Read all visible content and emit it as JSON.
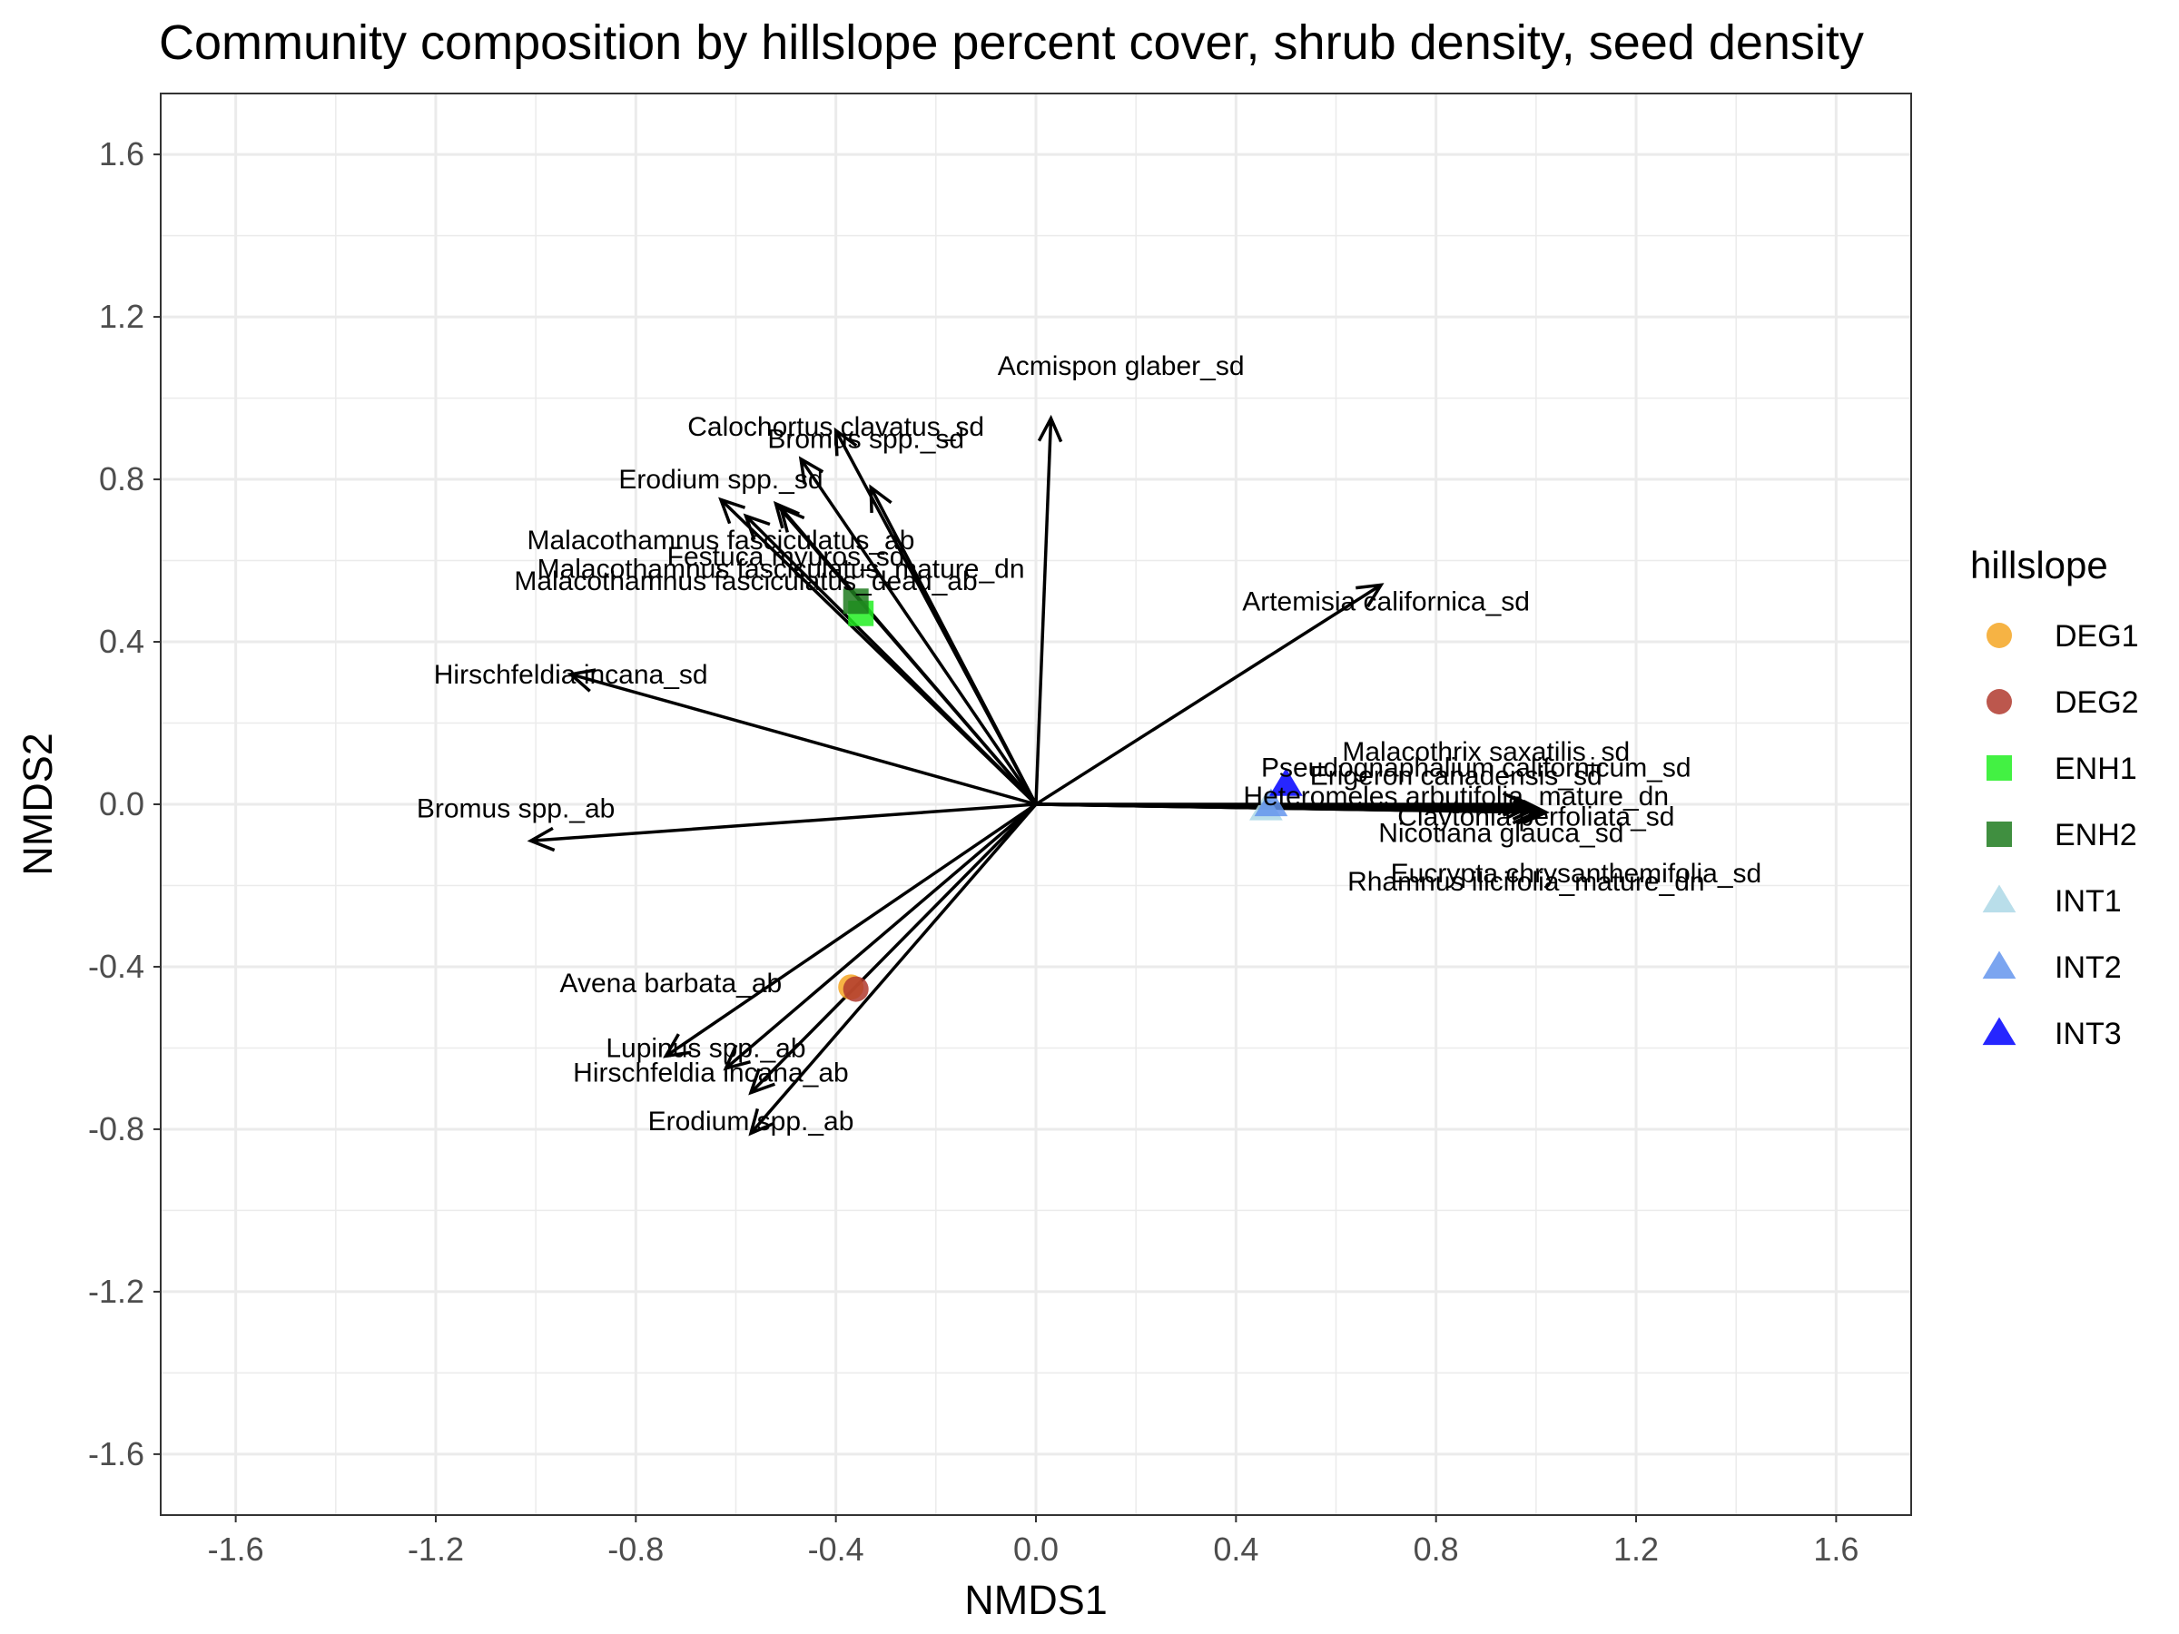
{
  "chart_data": {
    "type": "scatter",
    "title": "Community composition by hillslope percent cover, shrub density, seed density",
    "xlabel": "NMDS1",
    "ylabel": "NMDS2",
    "xlim": [
      -1.75,
      1.75
    ],
    "ylim": [
      -1.75,
      1.75
    ],
    "x_ticks": [
      -1.6,
      -1.2,
      -0.8,
      -0.4,
      0.0,
      0.4,
      0.8,
      1.2,
      1.6
    ],
    "x_tick_labels": [
      "-1.6",
      "-1.2",
      "-0.8",
      "-0.4",
      "0.0",
      "0.4",
      "0.8",
      "1.2",
      "1.6"
    ],
    "y_ticks": [
      1.6,
      1.2,
      0.8,
      0.4,
      0.0,
      -0.4,
      -0.8,
      -1.2,
      -1.6
    ],
    "y_tick_labels": [
      "1.6",
      "1.2",
      "0.8",
      "0.4",
      "0.0",
      "-0.4",
      "-0.8",
      "-1.2",
      "-1.6"
    ],
    "grid": true,
    "legend": {
      "title": "hillslope",
      "position": "right",
      "entries": [
        {
          "label": "DEG1",
          "color": "#F5A623",
          "shape": "circle"
        },
        {
          "label": "DEG2",
          "color": "#B03A2E",
          "shape": "circle"
        },
        {
          "label": "ENH1",
          "color": "#22EE22",
          "shape": "square"
        },
        {
          "label": "ENH2",
          "color": "#1E7B1E",
          "shape": "square"
        },
        {
          "label": "INT1",
          "color": "#ADD8E6",
          "shape": "triangle"
        },
        {
          "label": "INT2",
          "color": "#6495ED",
          "shape": "triangle"
        },
        {
          "label": "INT3",
          "color": "#0000FF",
          "shape": "triangle"
        }
      ]
    },
    "points": [
      {
        "group": "DEG1",
        "x": -0.37,
        "y": -0.45
      },
      {
        "group": "DEG2",
        "x": -0.36,
        "y": -0.455
      },
      {
        "group": "ENH1",
        "x": -0.35,
        "y": 0.47
      },
      {
        "group": "ENH2",
        "x": -0.36,
        "y": 0.5
      },
      {
        "group": "INT1",
        "x": 0.46,
        "y": -0.01
      },
      {
        "group": "INT2",
        "x": 0.47,
        "y": 0.0
      },
      {
        "group": "INT3",
        "x": 0.5,
        "y": 0.05
      }
    ],
    "vectors": [
      {
        "label": "Acmispon glaber_sd",
        "x": 0.03,
        "y": 0.95,
        "label_x": 0.17,
        "label_y": 1.08
      },
      {
        "label": "Calochortus clavatus_sd",
        "x": -0.4,
        "y": 0.92,
        "label_x": -0.4,
        "label_y": 0.93
      },
      {
        "label": "Bromus spp._sd",
        "x": -0.33,
        "y": 0.78,
        "label_x": -0.34,
        "label_y": 0.9
      },
      {
        "label": "Erodium spp._sd",
        "x": -0.63,
        "y": 0.75,
        "label_x": -0.63,
        "label_y": 0.8
      },
      {
        "label": "Festuca myuros_sd",
        "x": -0.47,
        "y": 0.85,
        "label_x": -0.5,
        "label_y": 0.61
      },
      {
        "label": "Malacothamnus fasciculatus_ab",
        "x": -0.52,
        "y": 0.74,
        "label_x": -0.63,
        "label_y": 0.65
      },
      {
        "label": "Malacothamnus fasciculatus_mature_dn",
        "x": -0.51,
        "y": 0.73,
        "label_x": -0.51,
        "label_y": 0.58
      },
      {
        "label": "Malacothamnus fasciculatus_dead_ab",
        "x": -0.58,
        "y": 0.71,
        "label_x": -0.58,
        "label_y": 0.55
      },
      {
        "label": "Artemisia californica_sd",
        "x": 0.69,
        "y": 0.54,
        "label_x": 0.7,
        "label_y": 0.5
      },
      {
        "label": "Hirschfeldia incana_sd",
        "x": -0.93,
        "y": 0.32,
        "label_x": -0.93,
        "label_y": 0.32
      },
      {
        "label": "Bromus spp._ab",
        "x": -1.01,
        "y": -0.09,
        "label_x": -1.04,
        "label_y": -0.01
      },
      {
        "label": "Malacothrix saxatilis_sd",
        "x": 0.98,
        "y": 0.0,
        "label_x": 0.9,
        "label_y": 0.13
      },
      {
        "label": "Pseudognaphalium californicum_sd",
        "x": 1.0,
        "y": -0.01,
        "label_x": 0.88,
        "label_y": 0.09
      },
      {
        "label": "Erigeron canadensis_sd",
        "x": 0.99,
        "y": -0.005,
        "label_x": 0.84,
        "label_y": 0.07
      },
      {
        "label": "Heteromeles arbutifolia_mature_dn",
        "x": 1.0,
        "y": -0.01,
        "label_x": 0.84,
        "label_y": 0.02
      },
      {
        "label": "Claytonia perfoliata_sd",
        "x": 1.01,
        "y": -0.015,
        "label_x": 1.0,
        "label_y": -0.03
      },
      {
        "label": "Nicotiana glauca_sd",
        "x": 1.0,
        "y": -0.02,
        "label_x": 0.93,
        "label_y": -0.07
      },
      {
        "label": "Eucrypta chrysanthemifolia_sd",
        "x": 1.02,
        "y": -0.02,
        "label_x": 1.08,
        "label_y": -0.17
      },
      {
        "label": "Rhamnus ilicifolia_mature_dn",
        "x": 1.01,
        "y": -0.02,
        "label_x": 0.98,
        "label_y": -0.19
      },
      {
        "label": "Avena barbata_ab",
        "x": -0.74,
        "y": -0.62,
        "label_x": -0.73,
        "label_y": -0.44
      },
      {
        "label": "Lupinus spp._ab",
        "x": -0.57,
        "y": -0.71,
        "label_x": -0.66,
        "label_y": -0.6
      },
      {
        "label": "Hirschfeldia incana_ab",
        "x": -0.62,
        "y": -0.65,
        "label_x": -0.65,
        "label_y": -0.66
      },
      {
        "label": "Erodium spp._ab",
        "x": -0.57,
        "y": -0.81,
        "label_x": -0.57,
        "label_y": -0.78
      }
    ]
  }
}
